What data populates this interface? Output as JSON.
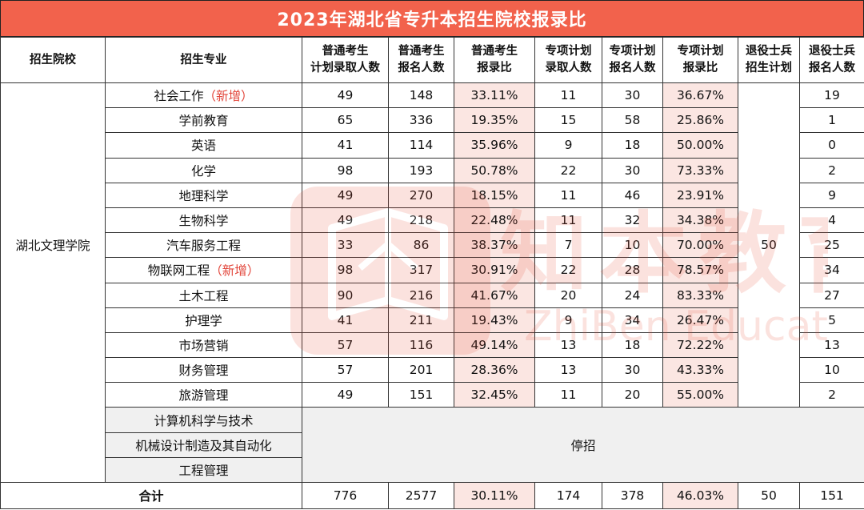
{
  "title": "2023年湖北省专升本招生院校报录比",
  "headers": {
    "school": "招生院校",
    "major": "招生专业",
    "plan_regular": [
      "普通考生",
      "计划录取人数"
    ],
    "apply_regular": [
      "普通考生",
      "报名人数"
    ],
    "ratio_regular": [
      "普通考生",
      "报录比"
    ],
    "plan_special": [
      "专项计划",
      "录取人数"
    ],
    "apply_special": [
      "专项计划",
      "报名人数"
    ],
    "ratio_special": [
      "专项计划",
      "报录比"
    ],
    "plan_veteran": [
      "退役士兵",
      "招生计划"
    ],
    "apply_veteran": [
      "退役士兵",
      "报名人数"
    ]
  },
  "school": "湖北文理学院",
  "veteran_plan": "50",
  "rows": [
    {
      "major": "社会工作",
      "tag": "（新增）",
      "plan": "49",
      "apply": "148",
      "ratio": "33.11%",
      "sp_plan": "11",
      "sp_apply": "30",
      "sp_ratio": "36.67%",
      "vet_apply": "19"
    },
    {
      "major": "学前教育",
      "tag": "",
      "plan": "65",
      "apply": "336",
      "ratio": "19.35%",
      "sp_plan": "15",
      "sp_apply": "58",
      "sp_ratio": "25.86%",
      "vet_apply": "1"
    },
    {
      "major": "英语",
      "tag": "",
      "plan": "41",
      "apply": "114",
      "ratio": "35.96%",
      "sp_plan": "9",
      "sp_apply": "18",
      "sp_ratio": "50.00%",
      "vet_apply": "0"
    },
    {
      "major": "化学",
      "tag": "",
      "plan": "98",
      "apply": "193",
      "ratio": "50.78%",
      "sp_plan": "22",
      "sp_apply": "30",
      "sp_ratio": "73.33%",
      "vet_apply": "2"
    },
    {
      "major": "地理科学",
      "tag": "",
      "plan": "49",
      "apply": "270",
      "ratio": "18.15%",
      "sp_plan": "11",
      "sp_apply": "46",
      "sp_ratio": "23.91%",
      "vet_apply": "9"
    },
    {
      "major": "生物科学",
      "tag": "",
      "plan": "49",
      "apply": "218",
      "ratio": "22.48%",
      "sp_plan": "11",
      "sp_apply": "32",
      "sp_ratio": "34.38%",
      "vet_apply": "4"
    },
    {
      "major": "汽车服务工程",
      "tag": "",
      "plan": "33",
      "apply": "86",
      "ratio": "38.37%",
      "sp_plan": "7",
      "sp_apply": "10",
      "sp_ratio": "70.00%",
      "vet_apply": "25"
    },
    {
      "major": "物联网工程",
      "tag": "（新增）",
      "plan": "98",
      "apply": "317",
      "ratio": "30.91%",
      "sp_plan": "22",
      "sp_apply": "28",
      "sp_ratio": "78.57%",
      "vet_apply": "34"
    },
    {
      "major": "土木工程",
      "tag": "",
      "plan": "90",
      "apply": "216",
      "ratio": "41.67%",
      "sp_plan": "20",
      "sp_apply": "24",
      "sp_ratio": "83.33%",
      "vet_apply": "27"
    },
    {
      "major": "护理学",
      "tag": "",
      "plan": "41",
      "apply": "211",
      "ratio": "19.43%",
      "sp_plan": "9",
      "sp_apply": "34",
      "sp_ratio": "26.47%",
      "vet_apply": "5"
    },
    {
      "major": "市场营销",
      "tag": "",
      "plan": "57",
      "apply": "116",
      "ratio": "49.14%",
      "sp_plan": "13",
      "sp_apply": "18",
      "sp_ratio": "72.22%",
      "vet_apply": "13"
    },
    {
      "major": "财务管理",
      "tag": "",
      "plan": "57",
      "apply": "201",
      "ratio": "28.36%",
      "sp_plan": "13",
      "sp_apply": "30",
      "sp_ratio": "43.33%",
      "vet_apply": "10"
    },
    {
      "major": "旅游管理",
      "tag": "",
      "plan": "49",
      "apply": "151",
      "ratio": "32.45%",
      "sp_plan": "11",
      "sp_apply": "20",
      "sp_ratio": "55.00%",
      "vet_apply": "2"
    }
  ],
  "stopped_majors": [
    "计算机科学与技术",
    "机械设计制造及其自动化",
    "工程管理"
  ],
  "stopped_label": "停招",
  "total": {
    "label": "合计",
    "plan": "776",
    "apply": "2577",
    "ratio": "30.11%",
    "sp_plan": "174",
    "sp_apply": "378",
    "sp_ratio": "46.03%",
    "vet_plan": "50",
    "vet_apply": "151"
  },
  "watermark": {
    "brand_cn": "知本教育",
    "brand_en": "ZhiBen Education",
    "logo_icon": "book-logo-icon",
    "color": "#e8503a"
  }
}
